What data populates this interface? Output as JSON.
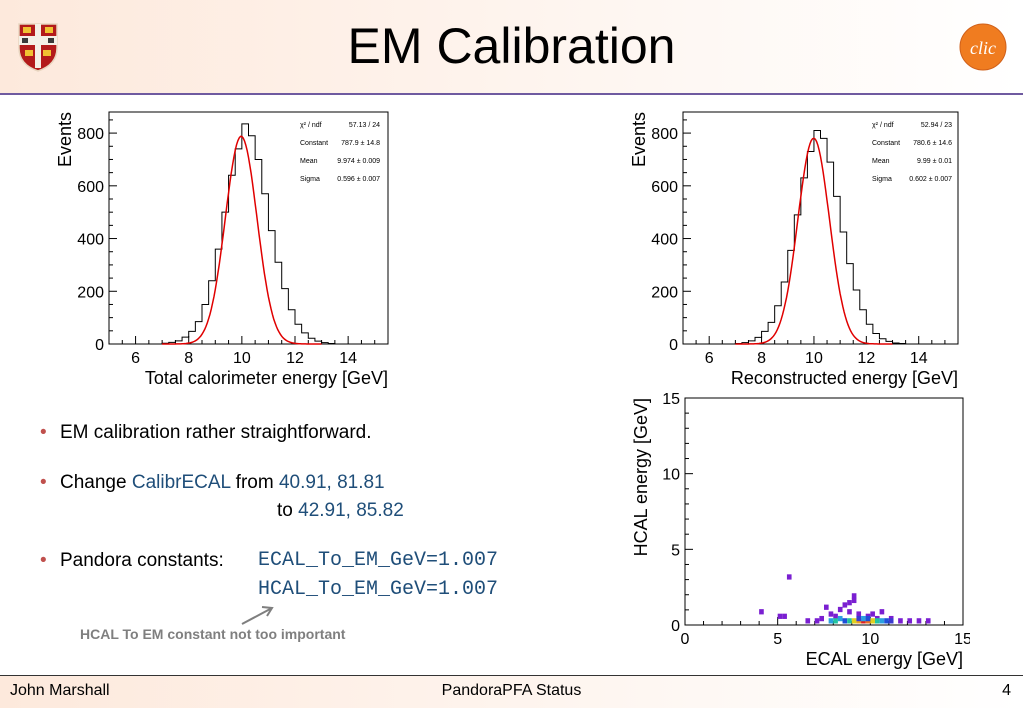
{
  "header": {
    "title": "EM Calibration"
  },
  "bullets": {
    "b1": "EM calibration rather straightforward.",
    "b2_prefix": "Change ",
    "b2_param": "CalibrECAL",
    "b2_from": " from ",
    "b2_from_vals": "40.91, 81.81",
    "b2_to": "to ",
    "b2_to_vals": "42.91, 85.82",
    "b3_prefix": "Pandora constants:",
    "b3_const1": "ECAL_To_EM_GeV=1.007",
    "b3_const2": "HCAL_To_EM_GeV=1.007",
    "note": "HCAL To EM constant not too important"
  },
  "footer": {
    "author": "John Marshall",
    "center": "PandoraPFA Status",
    "page": "4"
  },
  "colors": {
    "bullet": "#c0504d",
    "code_blue": "#1f4e79",
    "fit_line": "#e00000",
    "header_rule": "#6f5aa0"
  },
  "chart_data": [
    {
      "type": "histogram",
      "xlabel": "Total calorimeter energy [GeV]",
      "ylabel": "Events",
      "xlim": [
        5,
        15.5
      ],
      "ylim": [
        0,
        880
      ],
      "xticks": [
        6,
        8,
        10,
        12,
        14
      ],
      "yticks": [
        0,
        200,
        400,
        600,
        800
      ],
      "bin_width": 0.25,
      "bins_start": 7.0,
      "values": [
        3,
        6,
        12,
        26,
        48,
        85,
        150,
        240,
        360,
        500,
        640,
        740,
        835,
        790,
        700,
        570,
        430,
        310,
        210,
        130,
        75,
        42,
        22,
        11,
        5,
        2
      ],
      "fit": {
        "constant": 787.9,
        "mean": 9.974,
        "sigma": 0.596
      },
      "stats": [
        {
          "label": "χ² / ndf",
          "value": "57.13 / 24"
        },
        {
          "label": "Constant",
          "value": "787.9 ± 14.8"
        },
        {
          "label": "Mean",
          "value": "9.974 ± 0.009"
        },
        {
          "label": "Sigma",
          "value": "0.596 ± 0.007"
        }
      ]
    },
    {
      "type": "histogram",
      "xlabel": "Reconstructed energy [GeV]",
      "ylabel": "Events",
      "xlim": [
        5,
        15.5
      ],
      "ylim": [
        0,
        880
      ],
      "xticks": [
        6,
        8,
        10,
        12,
        14
      ],
      "yticks": [
        0,
        200,
        400,
        600,
        800
      ],
      "bin_width": 0.25,
      "bins_start": 7.0,
      "values": [
        2,
        5,
        12,
        25,
        48,
        82,
        145,
        235,
        355,
        490,
        630,
        730,
        810,
        780,
        690,
        560,
        425,
        305,
        205,
        130,
        75,
        40,
        20,
        10,
        4,
        2
      ],
      "fit": {
        "constant": 780.6,
        "mean": 9.99,
        "sigma": 0.602
      },
      "stats": [
        {
          "label": "χ² / ndf",
          "value": "52.94 / 23"
        },
        {
          "label": "Constant",
          "value": "780.6 ± 14.6"
        },
        {
          "label": "Mean",
          "value": "9.99 ± 0.01"
        },
        {
          "label": "Sigma",
          "value": "0.602 ± 0.007"
        }
      ]
    },
    {
      "type": "heatmap",
      "xlabel": "ECAL energy [GeV]",
      "ylabel": "HCAL energy [GeV]",
      "xlim": [
        0,
        15
      ],
      "ylim": [
        0,
        15
      ],
      "xticks": [
        0,
        5,
        10,
        15
      ],
      "yticks": [
        0,
        5,
        10,
        15
      ],
      "cell_w": 0.25,
      "cell_h": 0.15,
      "cells": [
        {
          "x": 5.5,
          "y": 3.0,
          "c": "#7a1fd1"
        },
        {
          "x": 4.0,
          "y": 0.7,
          "c": "#7a1fd1"
        },
        {
          "x": 5.0,
          "y": 0.4,
          "c": "#7a1fd1"
        },
        {
          "x": 5.25,
          "y": 0.4,
          "c": "#7a1fd1"
        },
        {
          "x": 6.5,
          "y": 0.1,
          "c": "#7a1fd1"
        },
        {
          "x": 7.0,
          "y": 0.1,
          "c": "#7a1fd1"
        },
        {
          "x": 7.25,
          "y": 0.25,
          "c": "#7a1fd1"
        },
        {
          "x": 7.5,
          "y": 1.0,
          "c": "#7a1fd1"
        },
        {
          "x": 7.75,
          "y": 0.55,
          "c": "#7a1fd1"
        },
        {
          "x": 8.0,
          "y": 0.4,
          "c": "#7a1fd1"
        },
        {
          "x": 8.25,
          "y": 0.85,
          "c": "#7a1fd1"
        },
        {
          "x": 8.5,
          "y": 1.15,
          "c": "#7a1fd1"
        },
        {
          "x": 8.75,
          "y": 1.3,
          "c": "#7a1fd1"
        },
        {
          "x": 9.0,
          "y": 1.75,
          "c": "#7a1fd1"
        },
        {
          "x": 9.0,
          "y": 1.45,
          "c": "#7a1fd1"
        },
        {
          "x": 8.75,
          "y": 0.7,
          "c": "#7a1fd1"
        },
        {
          "x": 9.25,
          "y": 0.55,
          "c": "#7a1fd1"
        },
        {
          "x": 9.75,
          "y": 0.4,
          "c": "#7a1fd1"
        },
        {
          "x": 10.0,
          "y": 0.55,
          "c": "#7a1fd1"
        },
        {
          "x": 10.25,
          "y": 0.25,
          "c": "#7a1fd1"
        },
        {
          "x": 10.5,
          "y": 0.7,
          "c": "#7a1fd1"
        },
        {
          "x": 11.0,
          "y": 0.25,
          "c": "#7a1fd1"
        },
        {
          "x": 11.5,
          "y": 0.1,
          "c": "#7a1fd1"
        },
        {
          "x": 12.0,
          "y": 0.1,
          "c": "#7a1fd1"
        },
        {
          "x": 12.5,
          "y": 0.1,
          "c": "#7a1fd1"
        },
        {
          "x": 13.0,
          "y": 0.1,
          "c": "#7a1fd1"
        },
        {
          "x": 7.75,
          "y": 0.1,
          "c": "#2aa0e0"
        },
        {
          "x": 8.0,
          "y": 0.1,
          "c": "#22c4a0"
        },
        {
          "x": 8.25,
          "y": 0.25,
          "c": "#2aa0e0"
        },
        {
          "x": 8.5,
          "y": 0.1,
          "c": "#1f4fd8"
        },
        {
          "x": 8.75,
          "y": 0.1,
          "c": "#22c4a0"
        },
        {
          "x": 9.0,
          "y": 0.1,
          "c": "#e0d020"
        },
        {
          "x": 9.25,
          "y": 0.1,
          "c": "#f0a020"
        },
        {
          "x": 9.5,
          "y": 0.1,
          "c": "#e02020"
        },
        {
          "x": 9.75,
          "y": 0.1,
          "c": "#f07020"
        },
        {
          "x": 10.0,
          "y": 0.1,
          "c": "#e0d020"
        },
        {
          "x": 10.25,
          "y": 0.1,
          "c": "#22c4a0"
        },
        {
          "x": 10.5,
          "y": 0.1,
          "c": "#2aa0e0"
        },
        {
          "x": 10.75,
          "y": 0.1,
          "c": "#1f4fd8"
        },
        {
          "x": 11.0,
          "y": 0.1,
          "c": "#3a3ad0"
        },
        {
          "x": 9.25,
          "y": 0.25,
          "c": "#3a3ad0"
        },
        {
          "x": 9.5,
          "y": 0.25,
          "c": "#2aa0e0"
        },
        {
          "x": 9.75,
          "y": 0.25,
          "c": "#1f4fd8"
        }
      ]
    }
  ]
}
